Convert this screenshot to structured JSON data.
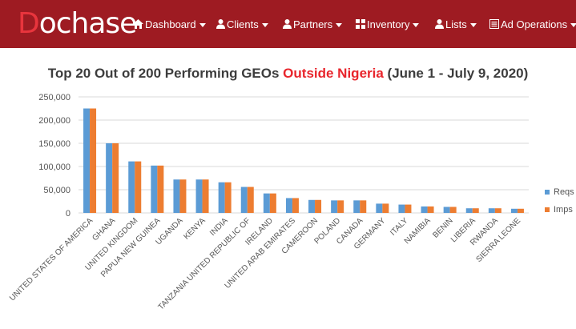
{
  "brand": {
    "logo_first": "D",
    "logo_rest": "ochase"
  },
  "nav": [
    {
      "label": "Dashboard",
      "icon": "home-icon"
    },
    {
      "label": "Clients",
      "icon": "user-icon"
    },
    {
      "label": "Partners",
      "icon": "user-icon"
    },
    {
      "label": "Inventory",
      "icon": "grid-icon"
    },
    {
      "label": "Lists",
      "icon": "user-icon"
    },
    {
      "label": "Ad Operations",
      "icon": "list-icon"
    }
  ],
  "chart_title": {
    "prefix": "Top 20 Out of 200 Performing GEOs ",
    "highlight": "Outside Nigeria",
    "suffix": " (June 1 - July 9, 2020)"
  },
  "colors": {
    "navbar": "#9e1b22",
    "highlight": "#e8252c",
    "reqs": "#5b9bd5",
    "imps": "#ed7d31"
  },
  "chart_data": {
    "type": "bar",
    "title": "Top 20 Out of 200 Performing GEOs Outside Nigeria (June 1 - July 9, 2020)",
    "categories": [
      "UNITED STATES OF AMERICA",
      "GHANA",
      "UNITED KINGDOM",
      "PAPUA NEW GUINEA",
      "UGANDA",
      "KENYA",
      "INDIA",
      "TANZANIA UNITED REPUBLIC OF",
      "IRELAND",
      "UNITED ARAB EMIRATES",
      "CAMEROON",
      "POLAND",
      "CANADA",
      "GERMANY",
      "ITALY",
      "NAMIBIA",
      "BENIN",
      "LIBERIA",
      "RWANDA",
      "SIERRA LEONE"
    ],
    "series": [
      {
        "name": "Reqs",
        "values": [
          225000,
          150000,
          111000,
          102000,
          72000,
          72000,
          66000,
          56000,
          42000,
          32000,
          28000,
          27000,
          27000,
          20000,
          18000,
          14000,
          13000,
          10000,
          10000,
          9000
        ]
      },
      {
        "name": "Imps",
        "values": [
          225000,
          150000,
          111000,
          102000,
          72000,
          72000,
          66000,
          56000,
          42000,
          32000,
          28000,
          27000,
          27000,
          20000,
          18000,
          14000,
          13000,
          10000,
          10000,
          9000
        ]
      }
    ],
    "yticks": [
      "0",
      "50,000",
      "100,000",
      "150,000",
      "200,000",
      "250,000"
    ],
    "ylim": [
      0,
      250000
    ],
    "grid": true,
    "legend": "right"
  }
}
